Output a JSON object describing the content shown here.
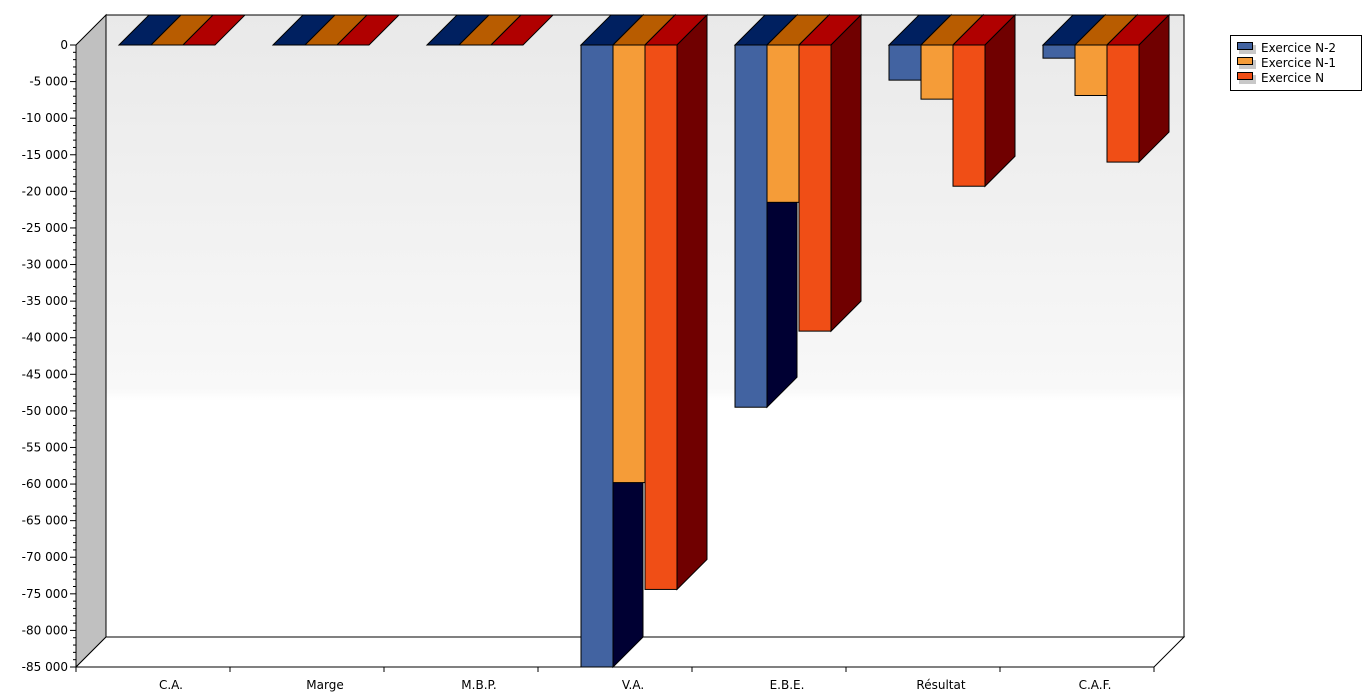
{
  "chart_data": {
    "type": "bar",
    "categories": [
      "C.A.",
      "Marge",
      "M.B.P.",
      "V.A.",
      "E.B.E.",
      "Résultat",
      "C.A.F."
    ],
    "series": [
      {
        "name": "Exercice N-2",
        "values": [
          0,
          0,
          0,
          -85000,
          -49500,
          -4800,
          -1800
        ],
        "color": "#4263a1",
        "top_color": "#002060",
        "side_color": "#000033"
      },
      {
        "name": "Exercice N-1",
        "values": [
          0,
          0,
          0,
          -59800,
          -21500,
          -7400,
          -6900
        ],
        "color": "#f59c38",
        "top_color": "#b85c00",
        "side_color": "#000033"
      },
      {
        "name": "Exercice N",
        "values": [
          0,
          0,
          0,
          -74400,
          -39100,
          -19300,
          -16000
        ],
        "color": "#f04e16",
        "top_color": "#b00000",
        "side_color": "#700000"
      }
    ],
    "ylim": [
      -85000,
      0
    ],
    "yticks": [
      "0",
      "-5 000",
      "-10 000",
      "-15 000",
      "-20 000",
      "-25 000",
      "-30 000",
      "-35 000",
      "-40 000",
      "-45 000",
      "-50 000",
      "-55 000",
      "-60 000",
      "-65 000",
      "-70 000",
      "-75 000",
      "-80 000",
      "-85 000"
    ],
    "ytick_values": [
      0,
      -5000,
      -10000,
      -15000,
      -20000,
      -25000,
      -30000,
      -35000,
      -40000,
      -45000,
      -50000,
      -55000,
      -60000,
      -65000,
      -70000,
      -75000,
      -80000,
      -85000
    ],
    "legend_position": "top-right",
    "grid": false,
    "title": "",
    "xlabel": "",
    "ylabel": ""
  }
}
